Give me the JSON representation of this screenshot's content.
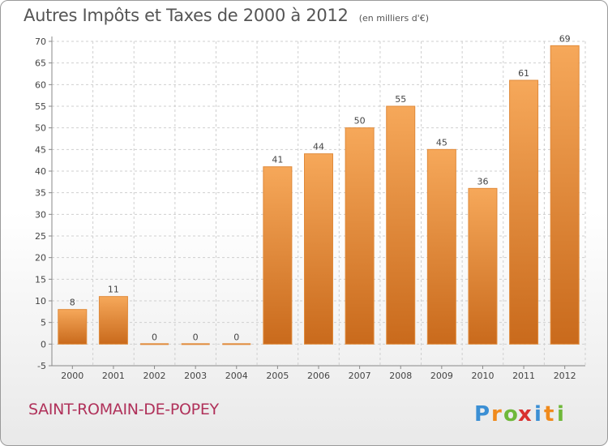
{
  "chart_data": {
    "type": "bar",
    "title": "Autres Impôts et Taxes de 2000 à 2012",
    "subtitle": "(en milliers d'€)",
    "categories": [
      "2000",
      "2001",
      "2002",
      "2003",
      "2004",
      "2005",
      "2006",
      "2007",
      "2008",
      "2009",
      "2010",
      "2011",
      "2012"
    ],
    "values": [
      8,
      11,
      0,
      0,
      0,
      41,
      44,
      50,
      55,
      45,
      36,
      61,
      69
    ],
    "ylim": [
      -5,
      70
    ],
    "yticks": [
      -5,
      0,
      5,
      10,
      15,
      20,
      25,
      30,
      35,
      40,
      45,
      50,
      55,
      60,
      65,
      70
    ],
    "grid": true,
    "bar_color": "#f0a050"
  },
  "commune": "SAINT-ROMAIN-DE-POPEY",
  "logo": {
    "letters": [
      "P",
      "r",
      "o",
      "x",
      "i",
      "t",
      "i"
    ],
    "colors": [
      "#3b8fd4",
      "#f08a1c",
      "#6fb83a",
      "#d9312f",
      "#3b8fd4",
      "#f08a1c",
      "#6fb83a"
    ]
  }
}
